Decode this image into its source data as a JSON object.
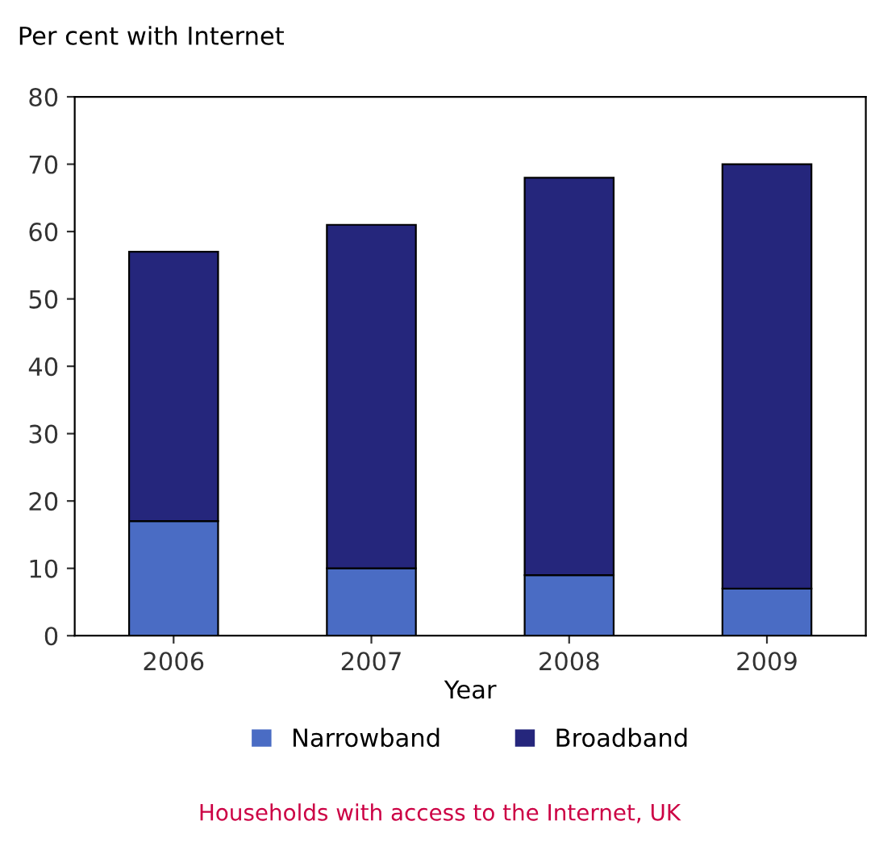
{
  "chart_data": {
    "type": "bar",
    "stacked": true,
    "ylabel": "Per cent with Internet",
    "xlabel": "Year",
    "categories": [
      "2006",
      "2007",
      "2008",
      "2009"
    ],
    "series": [
      {
        "name": "Narrowband",
        "color": "#4a6cc4",
        "values": [
          17,
          10,
          9,
          7
        ]
      },
      {
        "name": "Broadband",
        "color": "#25267c",
        "values": [
          40,
          51,
          59,
          63
        ]
      }
    ],
    "ylim": [
      0,
      80
    ],
    "yticks": [
      0,
      10,
      20,
      30,
      40,
      50,
      60,
      70,
      80
    ],
    "grid": false,
    "legend": "bottom",
    "annotations": [
      "Households with access to the Internet, UK"
    ]
  }
}
